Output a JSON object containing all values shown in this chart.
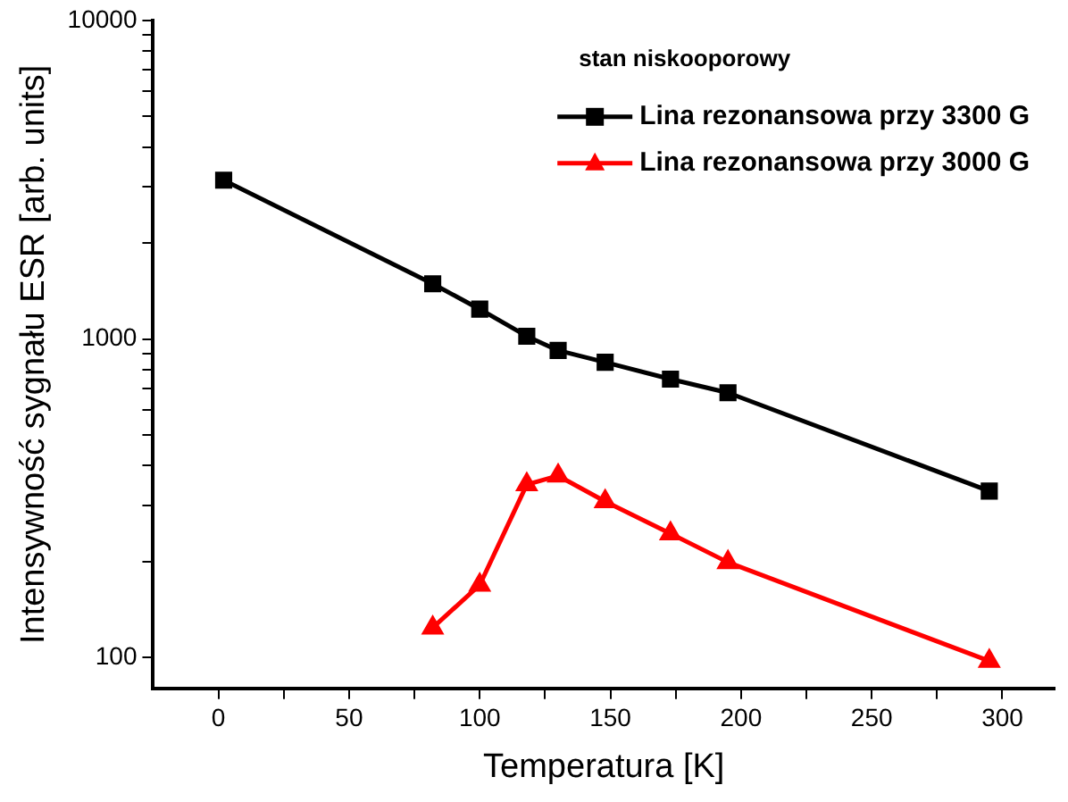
{
  "chart_data": {
    "type": "line",
    "xlabel": "Temperatura [K]",
    "ylabel": "Intensywność sygnału ESR [arb. units]",
    "legend_title": "stan niskooporowy",
    "legend": "top right",
    "grid": false,
    "log": "y",
    "line_style": "solid",
    "xlim": [
      -25,
      320
    ],
    "xticks": [
      0,
      {
        "value": 25,
        "label": null
      },
      50,
      {
        "value": 75,
        "label": null
      },
      100,
      {
        "value": 125,
        "label": null
      },
      150,
      {
        "value": 175,
        "label": null
      },
      200,
      {
        "value": 225,
        "label": null
      },
      250,
      {
        "value": 275,
        "label": null
      },
      300
    ],
    "ylim": [
      80,
      10000
    ],
    "yticks": [
      100,
      {
        "value": 200,
        "label": null
      },
      {
        "value": 300,
        "label": null
      },
      {
        "value": 400,
        "label": null
      },
      {
        "value": 500,
        "label": null
      },
      {
        "value": 600,
        "label": null
      },
      {
        "value": 700,
        "label": null
      },
      {
        "value": 800,
        "label": null
      },
      {
        "value": 900,
        "label": null
      },
      1000,
      {
        "value": 2000,
        "label": null
      },
      {
        "value": 3000,
        "label": null
      },
      {
        "value": 4000,
        "label": null
      },
      {
        "value": 5000,
        "label": null
      },
      {
        "value": 6000,
        "label": null
      },
      {
        "value": 7000,
        "label": null
      },
      {
        "value": 8000,
        "label": null
      },
      {
        "value": 9000,
        "label": null
      },
      10000
    ],
    "series": [
      {
        "name": "Lina rezonansowa przy 3300 G",
        "color": "#000000",
        "marker": "square",
        "x": [
          2,
          82,
          100,
          118,
          130,
          148,
          173,
          195,
          295
        ],
        "values": [
          3150,
          1490,
          1240,
          1020,
          920,
          845,
          748,
          678,
          333
        ]
      },
      {
        "name": "Lina rezonansowa przy 3000 G",
        "color": "#ff0000",
        "marker": "triangle",
        "x": [
          82,
          100,
          118,
          130,
          148,
          173,
          195,
          295
        ],
        "values": [
          124,
          169,
          349,
          372,
          309,
          245,
          199,
          97.5
        ]
      }
    ]
  }
}
